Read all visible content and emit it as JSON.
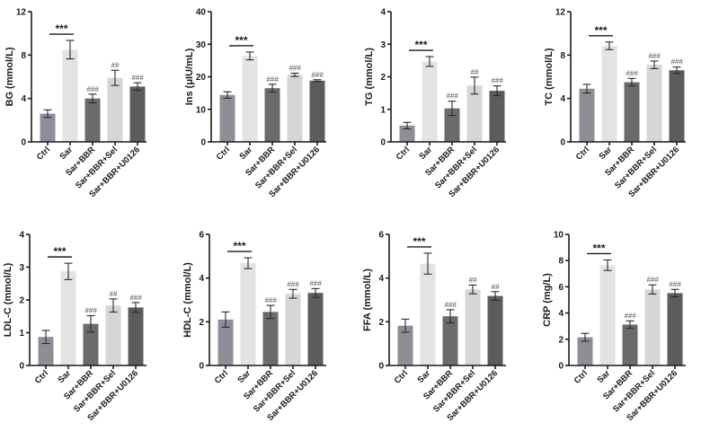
{
  "figure": {
    "groups": [
      "Ctrl",
      "Sar",
      "Sar+BBR",
      "Sar+BBR+Sel",
      "Sar+BBR+U0126"
    ],
    "bar_colors": [
      "#8e8e96",
      "#e3e3e3",
      "#6b6b6b",
      "#d6d6d6",
      "#5c5c5c"
    ],
    "comparison_label": "***"
  },
  "chart_data": [
    {
      "type": "bar",
      "title": "",
      "xlabel": "",
      "ylabel": "BG (mmol/L)",
      "ylim": [
        0,
        12
      ],
      "yticks": [
        0,
        4,
        8,
        12
      ],
      "categories": [
        "Ctrl",
        "Sar",
        "Sar+BBR",
        "Sar+BBR+Sel",
        "Sar+BBR+U0126"
      ],
      "values": [
        2.6,
        8.5,
        4.0,
        5.9,
        5.1
      ],
      "errors": [
        0.35,
        0.85,
        0.4,
        0.7,
        0.35
      ],
      "annotations": [
        "",
        "***",
        "###",
        "##",
        "###"
      ]
    },
    {
      "type": "bar",
      "title": "",
      "xlabel": "",
      "ylabel": "Ins (μIU/mL)",
      "ylim": [
        0,
        40
      ],
      "yticks": [
        0,
        10,
        20,
        30,
        40
      ],
      "categories": [
        "Ctrl",
        "Sar",
        "Sar+BBR",
        "Sar+BBR+Sel",
        "Sar+BBR+U0126"
      ],
      "values": [
        14.4,
        26.4,
        16.5,
        20.6,
        18.8
      ],
      "errors": [
        1.0,
        1.2,
        1.2,
        0.5,
        0.3
      ],
      "annotations": [
        "",
        "***",
        "###",
        "###",
        "###"
      ]
    },
    {
      "type": "bar",
      "title": "",
      "xlabel": "",
      "ylabel": "TG (mmol/L)",
      "ylim": [
        0,
        4
      ],
      "yticks": [
        0,
        1,
        2,
        3,
        4
      ],
      "categories": [
        "Ctrl",
        "Sar",
        "Sar+BBR",
        "Sar+BBR+Sel",
        "Sar+BBR+U0126"
      ],
      "values": [
        0.5,
        2.47,
        1.03,
        1.73,
        1.57
      ],
      "errors": [
        0.1,
        0.15,
        0.22,
        0.26,
        0.15
      ],
      "annotations": [
        "",
        "***",
        "###",
        "##",
        "###"
      ]
    },
    {
      "type": "bar",
      "title": "",
      "xlabel": "",
      "ylabel": "TC (mmol/L)",
      "ylim": [
        0,
        12
      ],
      "yticks": [
        0,
        4,
        8,
        12
      ],
      "categories": [
        "Ctrl",
        "Sar",
        "Sar+BBR",
        "Sar+BBR+Sel",
        "Sar+BBR+U0126"
      ],
      "values": [
        4.9,
        8.85,
        5.5,
        7.1,
        6.6
      ],
      "errors": [
        0.4,
        0.35,
        0.35,
        0.35,
        0.3
      ],
      "annotations": [
        "",
        "***",
        "###",
        "###",
        "###"
      ]
    },
    {
      "type": "bar",
      "title": "",
      "xlabel": "",
      "ylabel": "LDL-C (mmol/L)",
      "ylim": [
        0,
        4
      ],
      "yticks": [
        0,
        1,
        2,
        3,
        4
      ],
      "categories": [
        "Ctrl",
        "Sar",
        "Sar+BBR",
        "Sar+BBR+Sel",
        "Sar+BBR+U0126"
      ],
      "values": [
        0.87,
        2.87,
        1.27,
        1.83,
        1.77
      ],
      "errors": [
        0.2,
        0.25,
        0.25,
        0.2,
        0.15
      ],
      "annotations": [
        "",
        "***",
        "###",
        "##",
        "###"
      ]
    },
    {
      "type": "bar",
      "title": "",
      "xlabel": "",
      "ylabel": "HDL-C (mmol/L)",
      "ylim": [
        0,
        6
      ],
      "yticks": [
        0,
        2,
        4,
        6
      ],
      "categories": [
        "Ctrl",
        "Sar",
        "Sar+BBR",
        "Sar+BBR+Sel",
        "Sar+BBR+U0126"
      ],
      "values": [
        2.1,
        4.68,
        2.45,
        3.28,
        3.32
      ],
      "errors": [
        0.35,
        0.25,
        0.3,
        0.2,
        0.2
      ],
      "annotations": [
        "",
        "***",
        "###",
        "###",
        "###"
      ]
    },
    {
      "type": "bar",
      "title": "",
      "xlabel": "",
      "ylabel": "FFA (mmol/L)",
      "ylim": [
        0,
        6
      ],
      "yticks": [
        0,
        2,
        4,
        6
      ],
      "categories": [
        "Ctrl",
        "Sar",
        "Sar+BBR",
        "Sar+BBR+Sel",
        "Sar+BBR+U0126"
      ],
      "values": [
        1.82,
        4.66,
        2.25,
        3.48,
        3.18
      ],
      "errors": [
        0.3,
        0.48,
        0.3,
        0.2,
        0.2
      ],
      "annotations": [
        "",
        "***",
        "###",
        "##",
        "##"
      ]
    },
    {
      "type": "bar",
      "title": "",
      "xlabel": "",
      "ylabel": "CRP (mg/L)",
      "ylim": [
        0,
        10
      ],
      "yticks": [
        0,
        2,
        4,
        6,
        8,
        10
      ],
      "categories": [
        "Ctrl",
        "Sar",
        "Sar+BBR",
        "Sar+BBR+Sel",
        "Sar+BBR+U0126"
      ],
      "values": [
        2.15,
        7.65,
        3.12,
        5.8,
        5.52
      ],
      "errors": [
        0.3,
        0.4,
        0.28,
        0.35,
        0.28
      ],
      "annotations": [
        "",
        "***",
        "###",
        "###",
        "###"
      ]
    }
  ]
}
